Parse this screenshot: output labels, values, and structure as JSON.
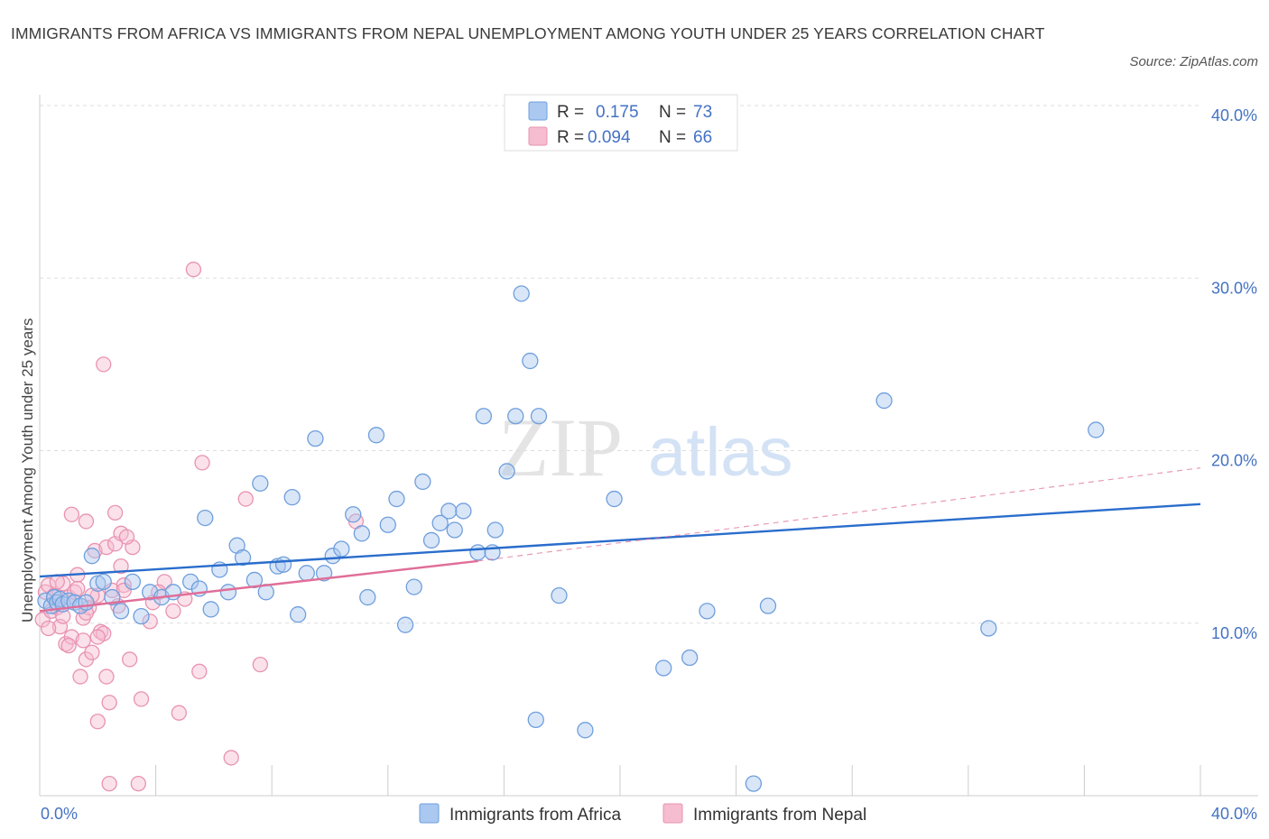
{
  "title": "IMMIGRANTS FROM AFRICA VS IMMIGRANTS FROM NEPAL UNEMPLOYMENT AMONG YOUTH UNDER 25 YEARS CORRELATION CHART",
  "source": "Source: ZipAtlas.com",
  "watermark": {
    "zip": "ZIP",
    "atlas": "atlas"
  },
  "colors": {
    "africa_fill": "#aac8f0",
    "africa_stroke": "#6f9fdc",
    "africa_line": "#2a6dcc",
    "nepal_fill": "#f6bcd0",
    "nepal_stroke": "#e893b2",
    "nepal_line": "#e06e98",
    "grid": "#dddddd",
    "accent": "#4472c4"
  },
  "legend": {
    "r_label": "R =",
    "n_label": "N =",
    "rows": [
      {
        "series": "africa",
        "r": "0.175",
        "n": "73"
      },
      {
        "series": "nepal",
        "r": "0.094",
        "n": "66"
      }
    ]
  },
  "chart_data": {
    "type": "scatter",
    "title": "IMMIGRANTS FROM AFRICA VS IMMIGRANTS FROM NEPAL UNEMPLOYMENT AMONG YOUTH UNDER 25 YEARS CORRELATION CHART",
    "xlabel": "",
    "ylabel": "Unemployment Among Youth under 25 years",
    "xlim": [
      0,
      40
    ],
    "ylim": [
      0,
      40
    ],
    "x_tick_labels": [
      {
        "value": 0,
        "label": "0.0%"
      },
      {
        "value": 40,
        "label": "40.0%"
      }
    ],
    "y_tick_labels": [
      {
        "value": 10,
        "label": "10.0%"
      },
      {
        "value": 20,
        "label": "20.0%"
      },
      {
        "value": 30,
        "label": "30.0%"
      },
      {
        "value": 40,
        "label": "40.0%"
      }
    ],
    "y_grid": [
      10,
      20,
      30,
      40
    ],
    "x_minor_ticks": [
      0,
      4,
      8,
      12,
      16,
      20,
      24,
      28,
      32,
      36,
      40
    ],
    "series": [
      {
        "name": "Immigrants from Africa",
        "key": "africa",
        "points": [
          [
            0.2,
            11.3
          ],
          [
            0.4,
            11.0
          ],
          [
            0.5,
            11.5
          ],
          [
            0.6,
            11.2
          ],
          [
            0.7,
            11.4
          ],
          [
            0.8,
            11.1
          ],
          [
            1.0,
            11.3
          ],
          [
            1.2,
            11.2
          ],
          [
            1.4,
            11.0
          ],
          [
            1.6,
            11.2
          ],
          [
            1.8,
            13.9
          ],
          [
            2.0,
            12.3
          ],
          [
            2.2,
            12.4
          ],
          [
            2.5,
            11.5
          ],
          [
            3.2,
            12.4
          ],
          [
            2.8,
            10.7
          ],
          [
            3.5,
            10.4
          ],
          [
            3.8,
            11.8
          ],
          [
            4.2,
            11.5
          ],
          [
            4.6,
            11.8
          ],
          [
            5.2,
            12.4
          ],
          [
            5.5,
            12.0
          ],
          [
            5.7,
            16.1
          ],
          [
            5.9,
            10.8
          ],
          [
            6.2,
            13.1
          ],
          [
            6.5,
            11.8
          ],
          [
            6.8,
            14.5
          ],
          [
            7.0,
            13.8
          ],
          [
            7.4,
            12.5
          ],
          [
            7.6,
            18.1
          ],
          [
            7.8,
            11.8
          ],
          [
            8.2,
            13.3
          ],
          [
            8.4,
            13.4
          ],
          [
            8.7,
            17.3
          ],
          [
            8.9,
            10.5
          ],
          [
            9.2,
            12.9
          ],
          [
            9.5,
            20.7
          ],
          [
            9.8,
            12.9
          ],
          [
            10.1,
            13.9
          ],
          [
            10.4,
            14.3
          ],
          [
            10.8,
            16.3
          ],
          [
            11.1,
            15.2
          ],
          [
            11.3,
            11.5
          ],
          [
            11.6,
            20.9
          ],
          [
            12.0,
            15.7
          ],
          [
            12.3,
            17.2
          ],
          [
            12.6,
            9.9
          ],
          [
            12.9,
            12.1
          ],
          [
            13.2,
            18.2
          ],
          [
            13.5,
            14.8
          ],
          [
            13.8,
            15.8
          ],
          [
            14.1,
            16.5
          ],
          [
            14.3,
            15.4
          ],
          [
            14.6,
            16.5
          ],
          [
            15.1,
            14.1
          ],
          [
            15.3,
            22.0
          ],
          [
            15.6,
            14.1
          ],
          [
            15.7,
            15.4
          ],
          [
            16.1,
            18.8
          ],
          [
            16.4,
            22.0
          ],
          [
            16.6,
            29.1
          ],
          [
            16.9,
            25.2
          ],
          [
            17.1,
            4.4
          ],
          [
            17.2,
            22.0
          ],
          [
            17.9,
            11.6
          ],
          [
            18.8,
            3.8
          ],
          [
            19.8,
            17.2
          ],
          [
            21.5,
            7.4
          ],
          [
            22.4,
            8.0
          ],
          [
            23.0,
            10.7
          ],
          [
            24.6,
            0.7
          ],
          [
            25.1,
            11.0
          ],
          [
            29.1,
            22.9
          ],
          [
            32.7,
            9.7
          ],
          [
            36.4,
            21.2
          ]
        ],
        "trend": {
          "x0": 0,
          "y0": 12.7,
          "x1": 40,
          "y1": 16.9
        }
      },
      {
        "name": "Immigrants from Nepal",
        "key": "nepal",
        "points": [
          [
            0.1,
            10.2
          ],
          [
            0.2,
            11.8
          ],
          [
            0.3,
            12.2
          ],
          [
            0.4,
            10.7
          ],
          [
            0.5,
            11.6
          ],
          [
            0.6,
            10.9
          ],
          [
            0.7,
            9.8
          ],
          [
            0.8,
            12.3
          ],
          [
            0.9,
            8.8
          ],
          [
            1.0,
            11.5
          ],
          [
            1.1,
            9.2
          ],
          [
            1.2,
            11.8
          ],
          [
            1.3,
            12.8
          ],
          [
            1.4,
            6.9
          ],
          [
            1.5,
            9.0
          ],
          [
            1.5,
            10.3
          ],
          [
            1.6,
            7.9
          ],
          [
            1.6,
            15.9
          ],
          [
            1.7,
            10.9
          ],
          [
            1.8,
            8.3
          ],
          [
            1.9,
            14.2
          ],
          [
            2.0,
            4.3
          ],
          [
            2.0,
            11.6
          ],
          [
            2.1,
            9.5
          ],
          [
            2.2,
            9.4
          ],
          [
            2.3,
            6.9
          ],
          [
            2.3,
            14.4
          ],
          [
            2.4,
            5.4
          ],
          [
            2.5,
            11.9
          ],
          [
            2.6,
            16.4
          ],
          [
            2.6,
            14.6
          ],
          [
            2.7,
            11.0
          ],
          [
            2.8,
            15.2
          ],
          [
            2.8,
            13.3
          ],
          [
            2.9,
            12.2
          ],
          [
            3.1,
            7.9
          ],
          [
            3.2,
            14.4
          ],
          [
            3.4,
            0.7
          ],
          [
            3.5,
            5.6
          ],
          [
            3.8,
            10.1
          ],
          [
            3.9,
            11.2
          ],
          [
            4.3,
            12.4
          ],
          [
            4.6,
            10.7
          ],
          [
            4.8,
            4.8
          ],
          [
            5.0,
            11.4
          ],
          [
            5.3,
            30.5
          ],
          [
            5.5,
            7.2
          ],
          [
            5.6,
            19.3
          ],
          [
            6.6,
            2.2
          ],
          [
            7.1,
            17.2
          ],
          [
            7.6,
            7.6
          ],
          [
            10.9,
            15.9
          ],
          [
            2.2,
            25.0
          ],
          [
            1.1,
            16.3
          ],
          [
            0.6,
            12.4
          ],
          [
            1.8,
            11.6
          ],
          [
            2.4,
            0.7
          ],
          [
            0.3,
            9.7
          ],
          [
            1.0,
            8.7
          ],
          [
            1.3,
            12.0
          ],
          [
            2.0,
            9.2
          ],
          [
            2.9,
            11.9
          ],
          [
            0.8,
            10.4
          ],
          [
            1.6,
            10.6
          ],
          [
            4.1,
            11.8
          ],
          [
            3.0,
            15.0
          ]
        ],
        "trend": {
          "x0": 0,
          "y0": 10.7,
          "x1": 15.1,
          "y1": 13.6
        },
        "trend_extension": {
          "x0": 15.1,
          "y0": 13.6,
          "x1": 40,
          "y1": 19.0
        }
      }
    ]
  },
  "bottom_legend": [
    {
      "key": "africa",
      "label": "Immigrants from Africa"
    },
    {
      "key": "nepal",
      "label": "Immigrants from Nepal"
    }
  ]
}
